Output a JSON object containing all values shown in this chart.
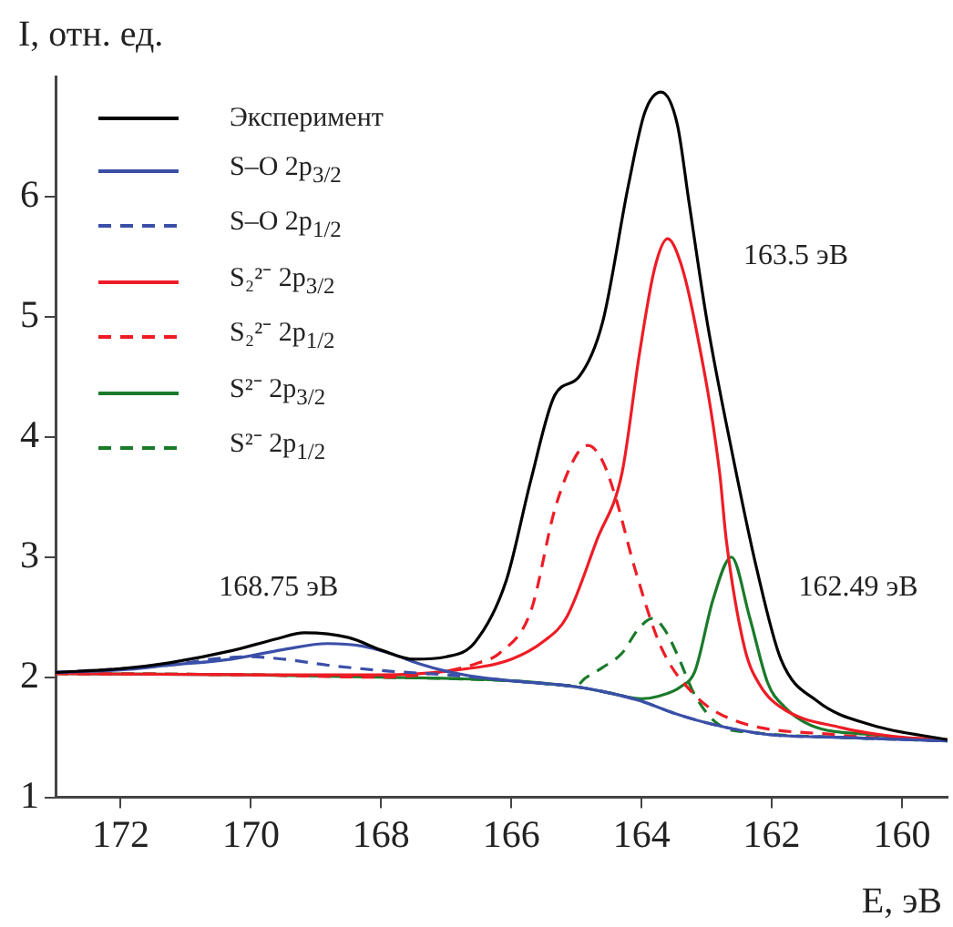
{
  "chart_data": {
    "type": "line",
    "xlabel": "E, эВ",
    "ylabel": "I, отн. ед.",
    "xlim": [
      173,
      159.3
    ],
    "xticks": [
      172,
      170,
      168,
      166,
      164,
      162,
      160
    ],
    "ylim": [
      1,
      7
    ],
    "yticks": [
      1,
      2,
      3,
      4,
      5,
      6
    ],
    "grid": false,
    "legend": "top left",
    "marker": "none",
    "annotations": [
      "168.75 эВ",
      "163.5 эВ",
      "162.49 эВ"
    ],
    "series": [
      {
        "name": "Эксперимент",
        "color": "#000000",
        "line_style": "solid",
        "x": [
          173,
          172,
          171.25,
          170.3,
          169.6,
          169.18,
          168.5,
          167.97,
          167.5,
          167.0,
          166.56,
          166.08,
          165.7,
          165.33,
          164.96,
          164.6,
          164.2,
          163.95,
          163.7,
          163.45,
          163.27,
          162.99,
          162.62,
          162.23,
          161.86,
          161.3,
          160.45,
          159.3
        ],
        "values": [
          2.04,
          2.07,
          2.12,
          2.22,
          2.32,
          2.37,
          2.33,
          2.22,
          2.15,
          2.17,
          2.29,
          2.8,
          3.64,
          4.35,
          4.5,
          4.95,
          6.1,
          6.7,
          6.87,
          6.6,
          5.95,
          4.95,
          3.9,
          2.9,
          2.15,
          1.8,
          1.6,
          1.48
        ]
      },
      {
        "name": "S–O 2p$_{3/2}$",
        "color": "#3a4fa8",
        "line_style": "solid",
        "x": [
          173,
          172,
          171.25,
          170.3,
          169.5,
          168.82,
          168.3,
          167.87,
          167.4,
          167,
          166.5,
          166,
          165,
          164.5,
          164,
          163.5,
          163,
          162.5,
          162,
          161,
          159.3
        ],
        "values": [
          2.04,
          2.06,
          2.1,
          2.15,
          2.23,
          2.28,
          2.26,
          2.2,
          2.11,
          2.05,
          2.0,
          1.97,
          1.92,
          1.87,
          1.8,
          1.7,
          1.62,
          1.56,
          1.52,
          1.5,
          1.47
        ]
      },
      {
        "name": "S–O 2p$_{1/2}$",
        "color": "#3a4fa8",
        "line_style": "dashed",
        "x": [
          173,
          172,
          171.25,
          170.6,
          170.03,
          169.5,
          168.82,
          167.87,
          167,
          166,
          165,
          164.5,
          164,
          163.5,
          163,
          162.5,
          162,
          161,
          159.3
        ],
        "values": [
          2.04,
          2.07,
          2.1,
          2.15,
          2.17,
          2.15,
          2.1,
          2.05,
          2.02,
          1.97,
          1.92,
          1.87,
          1.8,
          1.7,
          1.62,
          1.56,
          1.52,
          1.5,
          1.47
        ]
      },
      {
        "name": "S₂²⁻ 2p$_{3/2}$",
        "color": "#ee1c25",
        "line_style": "solid",
        "x": [
          173,
          170,
          168,
          167,
          166,
          165.5,
          165.15,
          164.68,
          164.3,
          164.03,
          163.8,
          163.6,
          163.4,
          163.18,
          162.8,
          162.7,
          162.42,
          162.2,
          161.86,
          160.93,
          160,
          159.3
        ],
        "values": [
          2.03,
          2.02,
          2.02,
          2.05,
          2.15,
          2.3,
          2.5,
          3.15,
          3.7,
          4.7,
          5.4,
          5.65,
          5.45,
          4.95,
          3.7,
          3.15,
          2.25,
          1.95,
          1.75,
          1.58,
          1.5,
          1.48
        ]
      },
      {
        "name": "S₂²⁻ 2p$_{1/2}$",
        "color": "#ee1c25",
        "line_style": "dashed",
        "x": [
          173,
          170,
          168,
          167,
          166.5,
          166.18,
          165.7,
          165.33,
          165.0,
          164.82,
          164.6,
          164.4,
          164.1,
          163.7,
          163.18,
          162.62,
          161,
          159.3
        ],
        "values": [
          2.03,
          2.02,
          2.0,
          2.05,
          2.12,
          2.2,
          2.55,
          3.4,
          3.85,
          3.93,
          3.8,
          3.5,
          2.9,
          2.25,
          1.85,
          1.65,
          1.52,
          1.47
        ]
      },
      {
        "name": "S²⁻ 2p$_{3/2}$",
        "color": "#1a7a2a",
        "line_style": "solid",
        "x": [
          173,
          170,
          168,
          166,
          165,
          164.5,
          164,
          163.75,
          163.4,
          163.18,
          162.9,
          162.62,
          162.34,
          162.06,
          161.8,
          161.4,
          160.45,
          159.3
        ],
        "values": [
          2.03,
          2.02,
          2.0,
          1.97,
          1.92,
          1.87,
          1.82,
          1.84,
          1.92,
          2.05,
          2.65,
          3.0,
          2.5,
          1.95,
          1.75,
          1.6,
          1.52,
          1.47
        ]
      },
      {
        "name": "S²⁻ 2p$_{1/2}$",
        "color": "#1a7a2a",
        "line_style": "dashed",
        "x": [
          173,
          170,
          168,
          166,
          165,
          164.87,
          164.6,
          164.3,
          164.05,
          163.83,
          163.65,
          163.46,
          163.18,
          162.8,
          162.3,
          161,
          159.3
        ],
        "values": [
          2.03,
          2.02,
          2.0,
          1.97,
          1.93,
          1.99,
          2.08,
          2.2,
          2.4,
          2.49,
          2.4,
          2.2,
          1.85,
          1.6,
          1.54,
          1.5,
          1.47
        ]
      }
    ]
  }
}
